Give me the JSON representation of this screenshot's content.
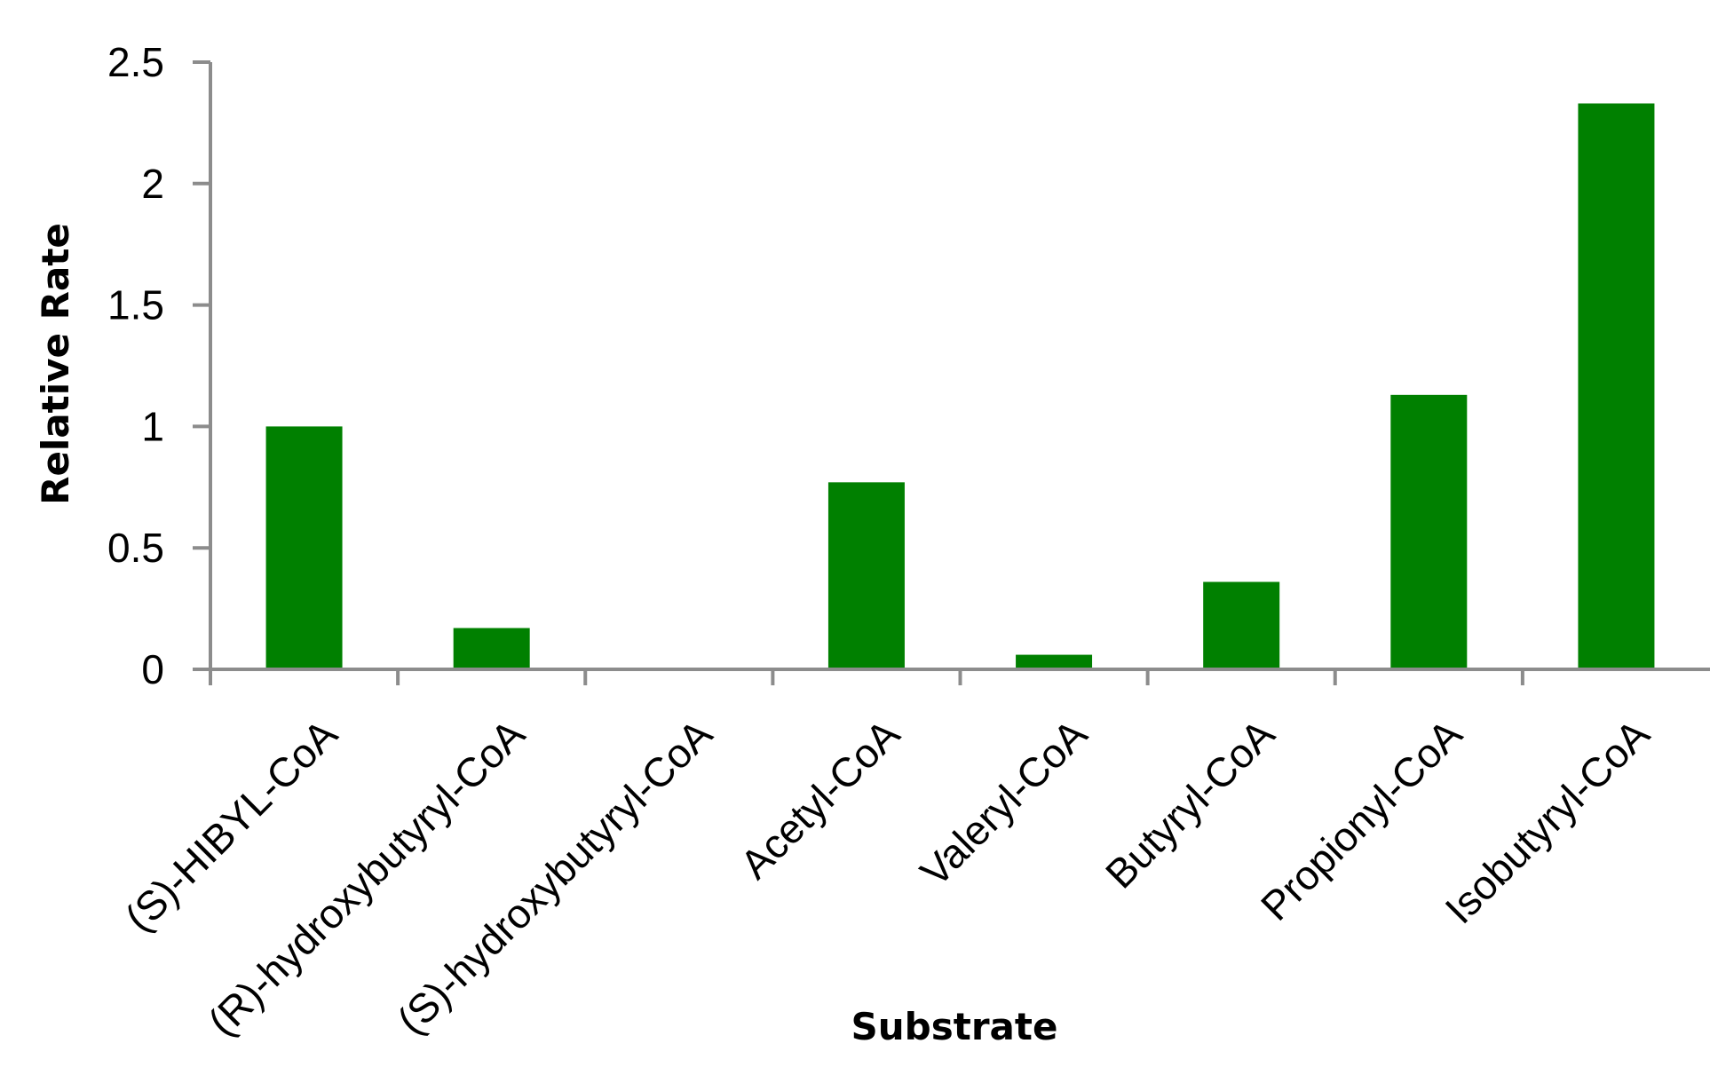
{
  "chart_data": {
    "type": "bar",
    "categories": [
      "(S)-HIBYL-CoA",
      "(R)-hydroxybutyryl-CoA",
      "(S)-hydroxybutyryl-CoA",
      "Acetyl-CoA",
      "Valeryl-CoA",
      "Butyryl-CoA",
      "Propionyl-CoA",
      "Isobutyryl-CoA"
    ],
    "values": [
      1.0,
      0.17,
      0.0,
      0.77,
      0.06,
      0.36,
      1.13,
      2.33
    ],
    "xlabel": "Substrate",
    "ylabel": "Relative Rate",
    "ylim": [
      0,
      2.5
    ],
    "yticks": [
      "0",
      "0.5",
      "1",
      "1.5",
      "2",
      "2.5"
    ],
    "bar_color": "#008000",
    "axis_color": "#8c8c8c",
    "grid": false,
    "legend": "none"
  }
}
